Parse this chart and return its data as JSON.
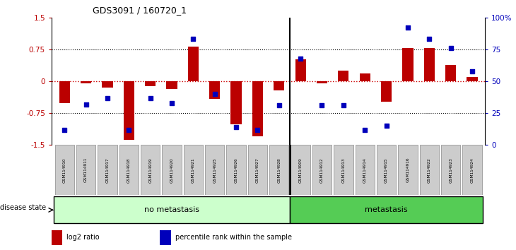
{
  "title": "GDS3091 / 160720_1",
  "samples": [
    "GSM114910",
    "GSM114911",
    "GSM114917",
    "GSM114918",
    "GSM114919",
    "GSM114920",
    "GSM114921",
    "GSM114925",
    "GSM114926",
    "GSM114927",
    "GSM114928",
    "GSM114909",
    "GSM114912",
    "GSM114913",
    "GSM114914",
    "GSM114915",
    "GSM114916",
    "GSM114922",
    "GSM114923",
    "GSM114924"
  ],
  "log2_ratio": [
    -0.52,
    -0.05,
    -0.15,
    -1.38,
    -0.12,
    -0.18,
    0.82,
    -0.42,
    -1.02,
    -1.3,
    -0.22,
    0.52,
    -0.05,
    0.25,
    0.18,
    -0.48,
    0.78,
    0.78,
    0.38,
    0.1
  ],
  "percentile_rank": [
    12,
    32,
    37,
    12,
    37,
    33,
    83,
    40,
    14,
    12,
    31,
    68,
    31,
    31,
    12,
    15,
    92,
    83,
    76,
    58
  ],
  "no_metastasis_count": 11,
  "metastasis_count": 9,
  "ylim_left": [
    -1.5,
    1.5
  ],
  "ylim_right": [
    0,
    100
  ],
  "yticks_left": [
    -1.5,
    -0.75,
    0,
    0.75,
    1.5
  ],
  "yticks_right": [
    0,
    25,
    50,
    75,
    100
  ],
  "ytick_labels_right": [
    "0",
    "25",
    "50",
    "75",
    "100%"
  ],
  "bar_color": "#bb0000",
  "dot_color": "#0000bb",
  "hline0_color": "#cc0000",
  "hline_pm_color": "#000000",
  "no_metastasis_color": "#ccffcc",
  "metastasis_color": "#55cc55",
  "label_box_color": "#cccccc",
  "legend_bar_label": "log2 ratio",
  "legend_dot_label": "percentile rank within the sample"
}
